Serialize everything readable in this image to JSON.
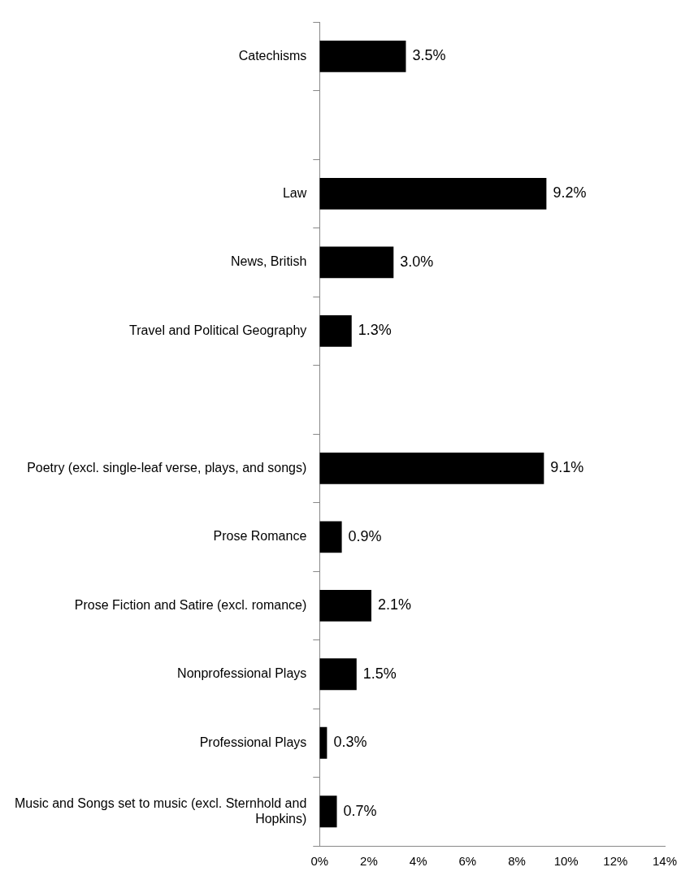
{
  "chart_data": {
    "type": "bar",
    "orientation": "horizontal",
    "categories": [
      "Catechisms",
      null,
      "Law",
      "News, British",
      "Travel and Political Geography",
      null,
      "Poetry (excl. single-leaf verse, plays, and songs)",
      "Prose Romance",
      "Prose Fiction and Satire (excl. romance)",
      "Nonprofessional Plays",
      "Professional Plays",
      "Music and Songs set to music (excl. Sternhold and Hopkins)"
    ],
    "values": [
      3.5,
      null,
      9.2,
      3.0,
      1.3,
      null,
      9.1,
      0.9,
      2.1,
      1.5,
      0.3,
      0.7
    ],
    "value_labels": [
      "3.5%",
      null,
      "9.2%",
      "3.0%",
      "1.3%",
      null,
      "9.1%",
      "0.9%",
      "2.1%",
      "1.5%",
      "0.3%",
      "0.7%"
    ],
    "color": "#000000",
    "xlim": [
      0,
      14
    ],
    "xticks": [
      {
        "value": 0,
        "label": "0%"
      },
      {
        "value": 2,
        "label": "2%"
      },
      {
        "value": 4,
        "label": "4%"
      },
      {
        "value": 6,
        "label": "6%"
      },
      {
        "value": 8,
        "label": "8%"
      },
      {
        "value": 10,
        "label": "10%"
      },
      {
        "value": 12,
        "label": "12%"
      },
      {
        "value": 14,
        "label": "14%"
      }
    ]
  }
}
